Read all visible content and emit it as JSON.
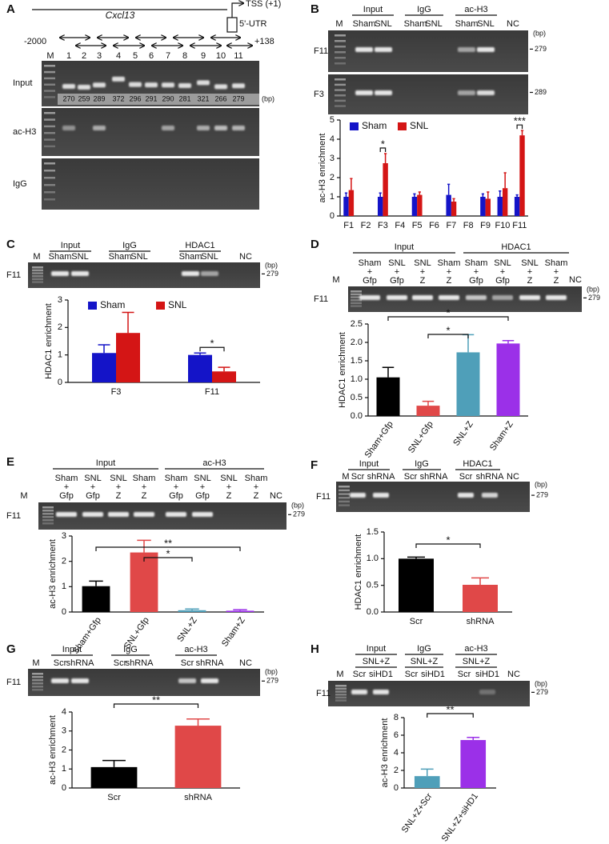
{
  "panels": {
    "A": {
      "label": "A",
      "gene": "Cxcl13",
      "tss": "TSS (+1)",
      "utr": "5'-UTR",
      "start": "-2000",
      "end": "+138",
      "marker": "M",
      "lanes": [
        "1",
        "2",
        "3",
        "4",
        "5",
        "6",
        "7",
        "8",
        "9",
        "10",
        "11"
      ],
      "rows": [
        "Input",
        "ac-H3",
        "IgG"
      ],
      "sizes": [
        "270",
        "259",
        "289",
        "372",
        "296",
        "291",
        "290",
        "281",
        "321",
        "266",
        "279"
      ],
      "unit": "(bp)"
    },
    "B": {
      "label": "B",
      "groups": [
        "Input",
        "IgG",
        "ac-H3"
      ],
      "marker": "M",
      "lanes": [
        "Sham",
        "SNL",
        "Sham",
        "SNL",
        "Sham",
        "SNL"
      ],
      "nc": "NC",
      "rows": [
        "F11",
        "F3"
      ],
      "sizes": [
        "279",
        "289"
      ],
      "unit": "(bp)"
    },
    "C": {
      "label": "C",
      "groups": [
        "Input",
        "IgG",
        "HDAC1"
      ],
      "marker": "M",
      "lanes": [
        "Sham",
        "SNL",
        "Sham",
        "SNL",
        "Sham",
        "SNL"
      ],
      "nc": "NC",
      "rows": [
        "F11"
      ],
      "sizes": [
        "279"
      ],
      "unit": "(bp)"
    },
    "D": {
      "label": "D",
      "groups": [
        "Input",
        "HDAC1"
      ],
      "marker": "M",
      "lanes": [
        [
          "Sham",
          "+",
          "Gfp"
        ],
        [
          "SNL",
          "+",
          "Gfp"
        ],
        [
          "SNL",
          "+",
          "Z"
        ],
        [
          "Sham",
          "+",
          "Z"
        ],
        [
          "Sham",
          "+",
          "Gfp"
        ],
        [
          "SNL",
          "+",
          "Gfp"
        ],
        [
          "SNL",
          "+",
          "Z"
        ],
        [
          "Sham",
          "+",
          "Z"
        ]
      ],
      "nc": "NC",
      "rows": [
        "F11"
      ],
      "sizes": [
        "279"
      ],
      "unit": "(bp)"
    },
    "E": {
      "label": "E",
      "groups": [
        "Input",
        "ac-H3"
      ],
      "marker": "M",
      "lanes": [
        [
          "Sham",
          "+",
          "Gfp"
        ],
        [
          "SNL",
          "+",
          "Gfp"
        ],
        [
          "SNL",
          "+",
          "Z"
        ],
        [
          "Sham",
          "+",
          "Z"
        ],
        [
          "Sham",
          "+",
          "Gfp"
        ],
        [
          "SNL",
          "+",
          "Gfp"
        ],
        [
          "SNL",
          "+",
          "Z"
        ],
        [
          "Sham",
          "+",
          "Z"
        ]
      ],
      "nc": "NC",
      "rows": [
        "F11"
      ],
      "sizes": [
        "279"
      ],
      "unit": "(bp)"
    },
    "F": {
      "label": "F",
      "groups": [
        "Input",
        "IgG",
        "HDAC1"
      ],
      "marker": "M",
      "lanes": [
        "Scr",
        "shRNA",
        "Scr",
        "shRNA",
        "Scr",
        "shRNA"
      ],
      "nc": "NC",
      "rows": [
        "F11"
      ],
      "sizes": [
        "279"
      ],
      "unit": "(bp)"
    },
    "G": {
      "label": "G",
      "groups": [
        "Input",
        "IgG",
        "ac-H3"
      ],
      "marker": "M",
      "lanes": [
        "Scr",
        "shRNA",
        "Scr",
        "shRNA",
        "Scr",
        "shRNA"
      ],
      "nc": "NC",
      "rows": [
        "F11"
      ],
      "sizes": [
        "279"
      ],
      "unit": "(bp)"
    },
    "H": {
      "label": "H",
      "groups": [
        "Input",
        "IgG",
        "ac-H3"
      ],
      "sub": [
        "SNL+Z",
        "SNL+Z",
        "SNL+Z"
      ],
      "marker": "M",
      "lanes": [
        "Scr",
        "siHD1",
        "Scr",
        "siHD1",
        "Scr",
        "siHD1"
      ],
      "nc": "NC",
      "rows": [
        "F11"
      ],
      "sizes": [
        "279"
      ],
      "unit": "(bp)"
    }
  },
  "chart_data": [
    {
      "type": "bar",
      "ylabel": "ac-H3 enrichment",
      "categories": [
        "F1",
        "F2",
        "F3",
        "F4",
        "F5",
        "F6",
        "F7",
        "F8",
        "F9",
        "F10",
        "F11"
      ],
      "series": [
        {
          "name": "Sham",
          "color": "#1414c8",
          "values": [
            1.0,
            null,
            1.0,
            null,
            1.0,
            null,
            1.1,
            null,
            1.0,
            1.0,
            1.0
          ],
          "errors": [
            0.2,
            null,
            0.2,
            null,
            0.15,
            null,
            0.55,
            null,
            0.15,
            0.3,
            0.1
          ]
        },
        {
          "name": "SNL",
          "color": "#d41515",
          "values": [
            1.35,
            null,
            2.75,
            null,
            1.1,
            null,
            0.75,
            null,
            0.9,
            1.45,
            4.2
          ],
          "errors": [
            0.6,
            null,
            0.5,
            null,
            0.15,
            null,
            0.15,
            null,
            0.35,
            0.8,
            0.25
          ]
        }
      ],
      "ylim": [
        0,
        5
      ],
      "yticks": [
        0,
        1,
        2,
        3,
        4,
        5
      ],
      "annotations": [
        "*",
        "***"
      ]
    },
    {
      "type": "bar",
      "ylabel": "HDAC1 enrichment",
      "categories": [
        "F3",
        "F11"
      ],
      "series": [
        {
          "name": "Sham",
          "color": "#1414c8",
          "values": [
            1.07,
            1.0
          ],
          "errors": [
            0.3,
            0.07
          ]
        },
        {
          "name": "SNL",
          "color": "#d41515",
          "values": [
            1.8,
            0.4
          ],
          "errors": [
            0.75,
            0.15
          ]
        }
      ],
      "ylim": [
        0,
        3
      ],
      "yticks": [
        0,
        1,
        2,
        3
      ],
      "annotations": [
        "*"
      ]
    },
    {
      "type": "bar",
      "ylabel": "HDAC1 enrichment",
      "categories": [
        "Sham+Gfp",
        "SNL+Gfp",
        "SNL+Z",
        "Sham+Z"
      ],
      "values": [
        1.05,
        0.28,
        1.73,
        1.97
      ],
      "errors": [
        0.27,
        0.12,
        0.48,
        0.08
      ],
      "colors": [
        "#000000",
        "#e04848",
        "#4f9fb9",
        "#9b30e8"
      ],
      "ylim": [
        0,
        2.5
      ],
      "yticks": [
        {
          "value": 0,
          "label": "0.0"
        },
        0.5,
        {
          "value": 1,
          "label": "1.0"
        },
        1.5,
        {
          "value": 2,
          "label": "2.0"
        },
        2.5
      ],
      "annotations": [
        "*",
        "*"
      ]
    },
    {
      "type": "bar",
      "ylabel": "ac-H3 enrichment",
      "categories": [
        "Sham+Gfp",
        "SNL+Gfp",
        "SNL+Z",
        "Sham+Z"
      ],
      "values": [
        1.02,
        2.35,
        0.07,
        0.05
      ],
      "errors": [
        0.2,
        0.48,
        0.05,
        0.04
      ],
      "colors": [
        "#000000",
        "#e04848",
        "#4f9fb9",
        "#9b30e8"
      ],
      "ylim": [
        0,
        3
      ],
      "yticks": [
        0,
        1,
        2,
        3
      ],
      "annotations": [
        "**",
        "*"
      ]
    },
    {
      "type": "bar",
      "ylabel": "HDAC1 enrichment",
      "categories": [
        "Scr",
        "shRNA"
      ],
      "values": [
        1.0,
        0.51
      ],
      "errors": [
        0.03,
        0.13
      ],
      "colors": [
        "#000000",
        "#e04848"
      ],
      "ylim": [
        0,
        1.5
      ],
      "yticks": [
        {
          "value": 0,
          "label": "0.0"
        },
        0.5,
        {
          "value": 1,
          "label": "1.0"
        },
        1.5
      ],
      "annotations": [
        "*"
      ]
    },
    {
      "type": "bar",
      "ylabel": "ac-H3 enrichment",
      "categories": [
        "Scr",
        "shRNA"
      ],
      "values": [
        1.1,
        3.28
      ],
      "errors": [
        0.35,
        0.35
      ],
      "colors": [
        "#000000",
        "#e04848"
      ],
      "ylim": [
        0,
        4
      ],
      "yticks": [
        0,
        1,
        2,
        3,
        4
      ],
      "annotations": [
        "**"
      ]
    },
    {
      "type": "bar",
      "ylabel": "ac-H3 enrichment",
      "categories": [
        "SNL+Z+Scr",
        "SNL+Z+siHD1"
      ],
      "values": [
        1.35,
        5.45
      ],
      "errors": [
        0.8,
        0.3
      ],
      "colors": [
        "#4f9fb9",
        "#9b30e8"
      ],
      "ylim": [
        0,
        8
      ],
      "yticks": [
        0,
        2,
        4,
        6,
        8
      ],
      "annotations": [
        "**"
      ]
    }
  ]
}
